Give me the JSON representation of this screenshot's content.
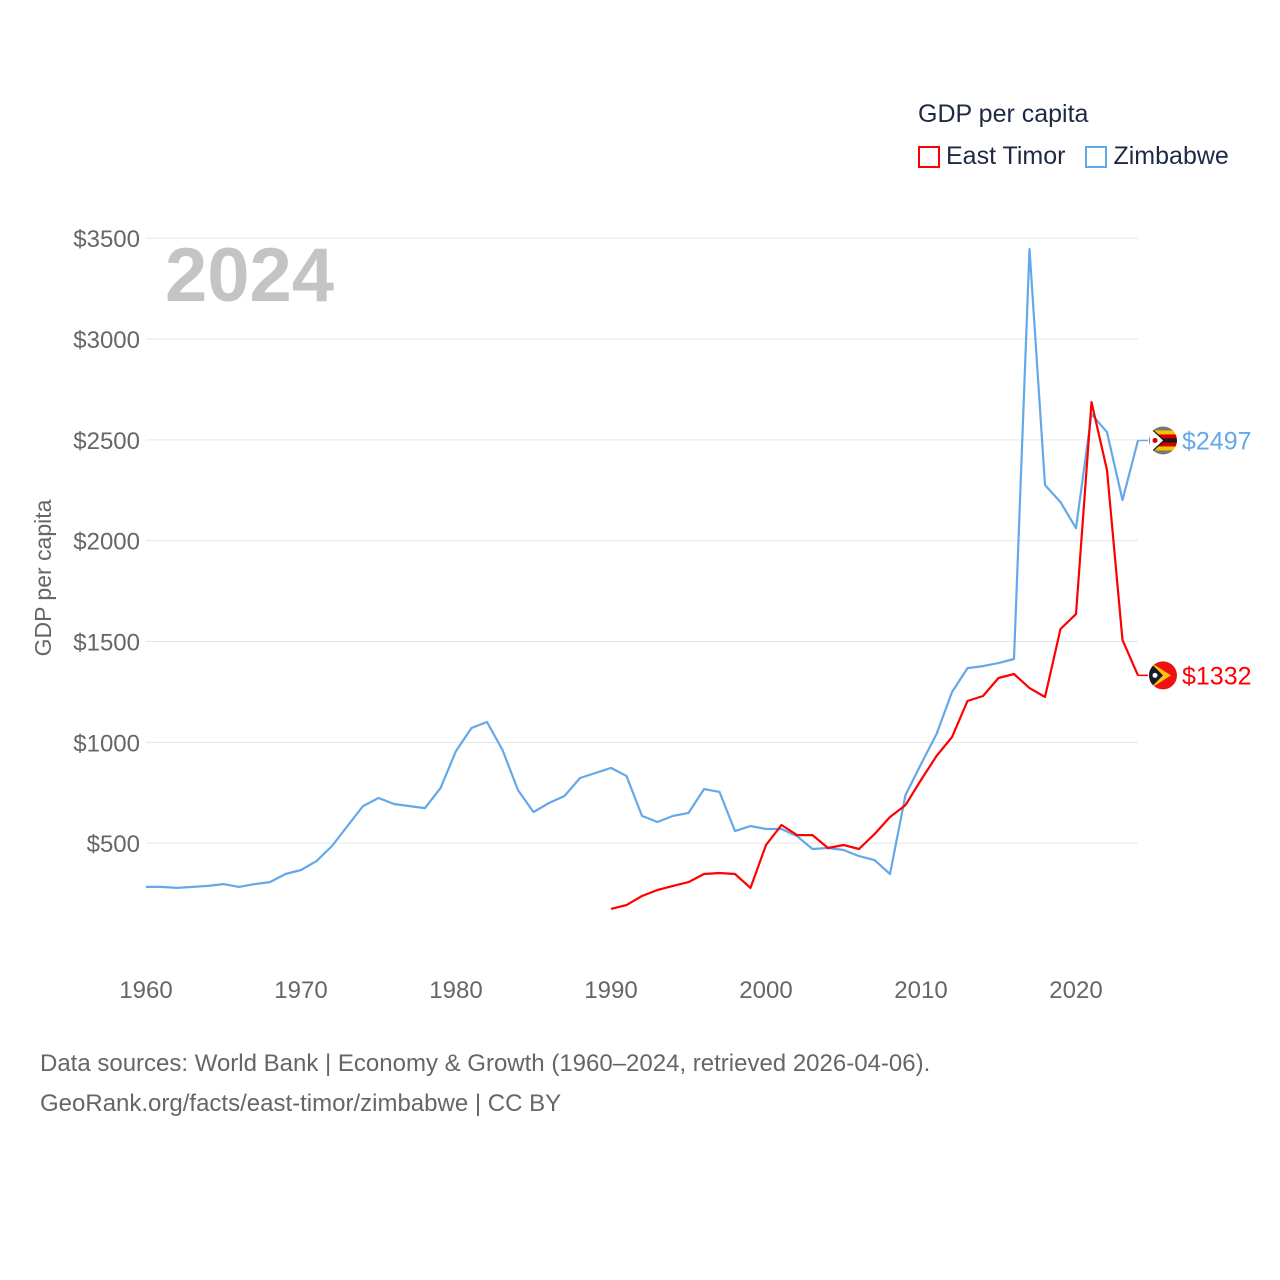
{
  "chart_data": {
    "type": "line",
    "title": "GDP per capita",
    "big_year_label": "2024",
    "xlabel": "",
    "ylabel": "GDP per capita",
    "xlim": [
      1960,
      2024
    ],
    "ylim": [
      0,
      3500
    ],
    "x_ticks": [
      1960,
      1970,
      1980,
      1990,
      2000,
      2010,
      2020
    ],
    "x_tick_labels": [
      "1960",
      "1970",
      "1980",
      "1990",
      "2000",
      "2010",
      "2020"
    ],
    "y_ticks": [
      500,
      1000,
      1500,
      2000,
      2500,
      3000,
      3500
    ],
    "y_tick_labels": [
      "$500",
      "$1000",
      "$1500",
      "$2000",
      "$2500",
      "$3000",
      "$3500"
    ],
    "grid": true,
    "legend_placement": "top-right",
    "legend": [
      "East Timor",
      "Zimbabwe"
    ],
    "series": [
      {
        "name": "East Timor",
        "color": "#ff0000",
        "end_label": "$1332",
        "start_year": 1990,
        "values": [
          174,
          193,
          238,
          268,
          288,
          307,
          347,
          352,
          347,
          278,
          491,
          590,
          540,
          540,
          476,
          491,
          471,
          545,
          630,
          689,
          813,
          932,
          1026,
          1205,
          1230,
          1319,
          1339,
          1269,
          1225,
          1562,
          1636,
          2687,
          2350,
          1507,
          1332
        ]
      },
      {
        "name": "Zimbabwe",
        "color": "#64a8ea",
        "end_label": "$2497",
        "start_year": 1960,
        "values": [
          283,
          283,
          278,
          283,
          288,
          297,
          283,
          297,
          307,
          347,
          367,
          411,
          486,
          585,
          684,
          724,
          694,
          684,
          674,
          773,
          957,
          1071,
          1101,
          962,
          763,
          654,
          699,
          734,
          823,
          848,
          873,
          833,
          635,
          605,
          635,
          650,
          768,
          754,
          560,
          585,
          570,
          570,
          535,
          471,
          476,
          466,
          436,
          416,
          347,
          739,
          892,
          1041,
          1249,
          1368,
          1378,
          1393,
          1413,
          3446,
          2276,
          2191,
          2062,
          2628,
          2538,
          2201,
          2497
        ]
      }
    ]
  },
  "footer": {
    "line1": "Data sources: World Bank | Economy & Growth (1960–2024, retrieved 2026-04-06).",
    "line2": "GeoRank.org/facts/east-timor/zimbabwe | CC BY"
  }
}
